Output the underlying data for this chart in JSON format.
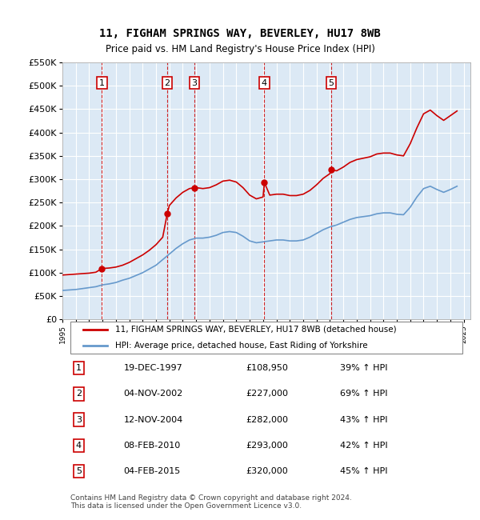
{
  "title": "11, FIGHAM SPRINGS WAY, BEVERLEY, HU17 8WB",
  "subtitle": "Price paid vs. HM Land Registry's House Price Index (HPI)",
  "background_color": "#dce9f5",
  "plot_bg_color": "#dce9f5",
  "ylim": [
    0,
    550000
  ],
  "yticks": [
    0,
    50000,
    100000,
    150000,
    200000,
    250000,
    300000,
    350000,
    400000,
    450000,
    500000,
    550000
  ],
  "ytick_labels": [
    "£0",
    "£50K",
    "£100K",
    "£150K",
    "£200K",
    "£250K",
    "£300K",
    "£350K",
    "£400K",
    "£450K",
    "£500K",
    "£550K"
  ],
  "xlim_start": 1995.0,
  "xlim_end": 2025.5,
  "price_line_color": "#cc0000",
  "hpi_line_color": "#6699cc",
  "sale_marker_color": "#cc0000",
  "sale_vline_color": "#cc0000",
  "sale_box_color": "#cc0000",
  "sales": [
    {
      "num": 1,
      "year": 1997.96,
      "price": 108950,
      "date": "19-DEC-1997",
      "pct": "39%",
      "label": "£108,950"
    },
    {
      "num": 2,
      "year": 2002.84,
      "price": 227000,
      "date": "04-NOV-2002",
      "pct": "69%",
      "label": "£227,000"
    },
    {
      "num": 3,
      "year": 2004.87,
      "price": 282000,
      "date": "12-NOV-2004",
      "pct": "43%",
      "label": "£282,000"
    },
    {
      "num": 4,
      "year": 2010.1,
      "price": 293000,
      "date": "08-FEB-2010",
      "pct": "42%",
      "label": "£293,000"
    },
    {
      "num": 5,
      "year": 2015.09,
      "price": 320000,
      "date": "04-FEB-2015",
      "pct": "45%",
      "label": "£320,000"
    }
  ],
  "hpi_data": {
    "x": [
      1995.0,
      1995.5,
      1996.0,
      1996.5,
      1997.0,
      1997.5,
      1998.0,
      1998.5,
      1999.0,
      1999.5,
      2000.0,
      2000.5,
      2001.0,
      2001.5,
      2002.0,
      2002.5,
      2003.0,
      2003.5,
      2004.0,
      2004.5,
      2005.0,
      2005.5,
      2006.0,
      2006.5,
      2007.0,
      2007.5,
      2008.0,
      2008.5,
      2009.0,
      2009.5,
      2010.0,
      2010.5,
      2011.0,
      2011.5,
      2012.0,
      2012.5,
      2013.0,
      2013.5,
      2014.0,
      2014.5,
      2015.0,
      2015.5,
      2016.0,
      2016.5,
      2017.0,
      2017.5,
      2018.0,
      2018.5,
      2019.0,
      2019.5,
      2020.0,
      2020.5,
      2021.0,
      2021.5,
      2022.0,
      2022.5,
      2023.0,
      2023.5,
      2024.0,
      2024.5
    ],
    "y": [
      62000,
      63000,
      64000,
      66000,
      68000,
      70000,
      74000,
      76000,
      79000,
      84000,
      88000,
      94000,
      100000,
      108000,
      116000,
      128000,
      140000,
      152000,
      162000,
      170000,
      174000,
      174000,
      176000,
      180000,
      186000,
      188000,
      186000,
      178000,
      168000,
      164000,
      166000,
      168000,
      170000,
      170000,
      168000,
      168000,
      170000,
      176000,
      184000,
      192000,
      198000,
      202000,
      208000,
      214000,
      218000,
      220000,
      222000,
      226000,
      228000,
      228000,
      225000,
      224000,
      240000,
      262000,
      280000,
      285000,
      278000,
      272000,
      278000,
      285000
    ]
  },
  "price_data": {
    "x": [
      1995.0,
      1995.5,
      1996.0,
      1996.5,
      1997.0,
      1997.5,
      1997.96,
      1998.0,
      1998.5,
      1999.0,
      1999.5,
      2000.0,
      2000.5,
      2001.0,
      2001.5,
      2002.0,
      2002.5,
      2002.84,
      2003.0,
      2003.5,
      2004.0,
      2004.5,
      2004.87,
      2005.0,
      2005.5,
      2006.0,
      2006.5,
      2007.0,
      2007.5,
      2008.0,
      2008.5,
      2009.0,
      2009.5,
      2010.0,
      2010.1,
      2010.5,
      2011.0,
      2011.5,
      2012.0,
      2012.5,
      2013.0,
      2013.5,
      2014.0,
      2014.5,
      2015.0,
      2015.09,
      2015.5,
      2016.0,
      2016.5,
      2017.0,
      2017.5,
      2018.0,
      2018.5,
      2019.0,
      2019.5,
      2020.0,
      2020.5,
      2021.0,
      2021.5,
      2022.0,
      2022.5,
      2023.0,
      2023.5,
      2024.0,
      2024.5
    ],
    "y": [
      95000,
      96000,
      97000,
      98000,
      99000,
      101000,
      108950,
      109000,
      110000,
      112000,
      116000,
      122000,
      130000,
      138000,
      148000,
      160000,
      176000,
      227000,
      244000,
      260000,
      272000,
      280000,
      282000,
      282000,
      280000,
      282000,
      288000,
      296000,
      298000,
      294000,
      282000,
      266000,
      258000,
      262000,
      293000,
      266000,
      268000,
      268000,
      265000,
      265000,
      268000,
      276000,
      288000,
      302000,
      312000,
      320000,
      318000,
      326000,
      336000,
      342000,
      345000,
      348000,
      354000,
      356000,
      356000,
      352000,
      350000,
      376000,
      410000,
      440000,
      448000,
      436000,
      426000,
      436000,
      446000
    ]
  },
  "legend_label_price": "11, FIGHAM SPRINGS WAY, BEVERLEY, HU17 8WB (detached house)",
  "legend_label_hpi": "HPI: Average price, detached house, East Riding of Yorkshire",
  "footer": "Contains HM Land Registry data © Crown copyright and database right 2024.\nThis data is licensed under the Open Government Licence v3.0.",
  "table_rows": [
    {
      "num": 1,
      "date": "19-DEC-1997",
      "price": "£108,950",
      "pct": "39% ↑ HPI"
    },
    {
      "num": 2,
      "date": "04-NOV-2002",
      "price": "£227,000",
      "pct": "69% ↑ HPI"
    },
    {
      "num": 3,
      "date": "12-NOV-2004",
      "price": "£282,000",
      "pct": "43% ↑ HPI"
    },
    {
      "num": 4,
      "date": "08-FEB-2010",
      "price": "£293,000",
      "pct": "42% ↑ HPI"
    },
    {
      "num": 5,
      "date": "04-FEB-2015",
      "price": "£320,000",
      "pct": "45% ↑ HPI"
    }
  ]
}
